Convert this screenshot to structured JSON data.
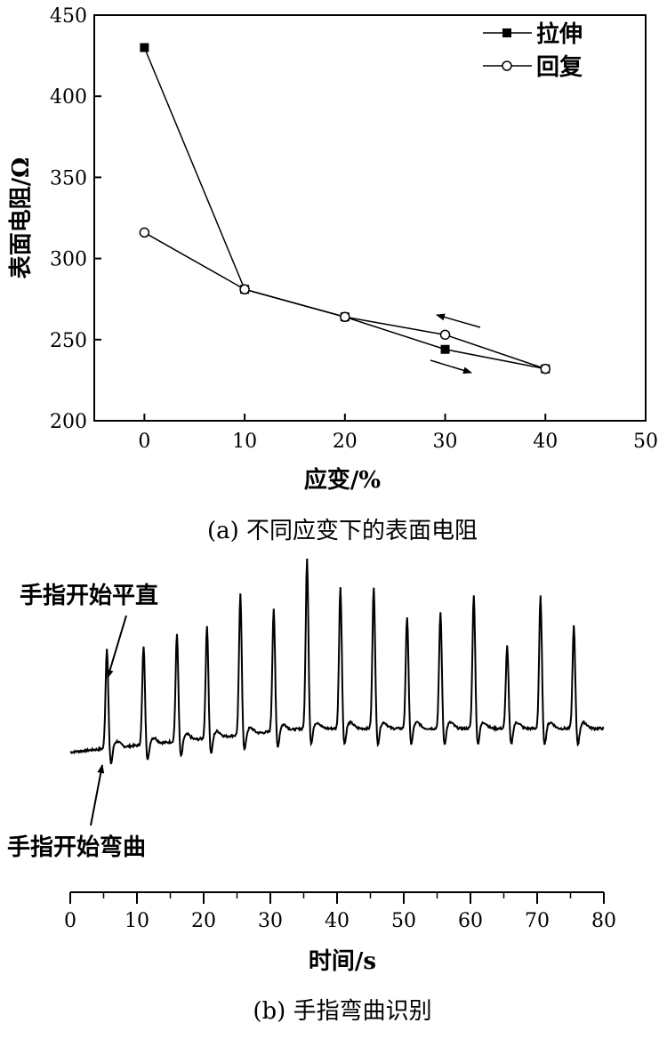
{
  "chart_data": [
    {
      "type": "line",
      "caption": "(a) 不同应变下的表面电阻",
      "xlabel": "应变/%",
      "ylabel": "表面电阻/Ω",
      "xlim": [
        -5,
        50
      ],
      "ylim": [
        200,
        450
      ],
      "xticks": [
        0,
        10,
        20,
        30,
        40,
        50
      ],
      "yticks": [
        200,
        250,
        300,
        350,
        400,
        450
      ],
      "x": [
        0,
        10,
        20,
        30,
        40
      ],
      "series": [
        {
          "name": "拉伸",
          "marker": "filled-square",
          "values": [
            430,
            281,
            264,
            244,
            232
          ]
        },
        {
          "name": "回复",
          "marker": "open-circle",
          "values": [
            316,
            281,
            264,
            253,
            232
          ]
        }
      ],
      "legend_position": "top-right",
      "grid": false,
      "annotations": [
        "upper-arrow-left",
        "lower-arrow-right"
      ]
    },
    {
      "type": "line",
      "caption": "(b) 手指弯曲识别",
      "xlabel": "时间/s",
      "xlim": [
        0,
        80
      ],
      "xticks": [
        0,
        10,
        20,
        30,
        40,
        50,
        60,
        70,
        80
      ],
      "y_axis_shown": false,
      "peaks_x": [
        5.5,
        11,
        16,
        20.5,
        25.5,
        30.5,
        35.5,
        40.5,
        45.5,
        50.5,
        55.5,
        60.5,
        65.5,
        70.5,
        75.5
      ],
      "peaks_level": [
        0.55,
        0.56,
        0.62,
        0.66,
        0.82,
        0.75,
        1.0,
        0.86,
        0.86,
        0.71,
        0.73,
        0.82,
        0.56,
        0.81,
        0.66
      ],
      "baseline_start": 0.02,
      "baseline_end": 0.14,
      "annotations": [
        {
          "text": "手指开始平直",
          "x": 5.5
        },
        {
          "text": "手指开始弯曲",
          "x": 5
        }
      ]
    }
  ]
}
